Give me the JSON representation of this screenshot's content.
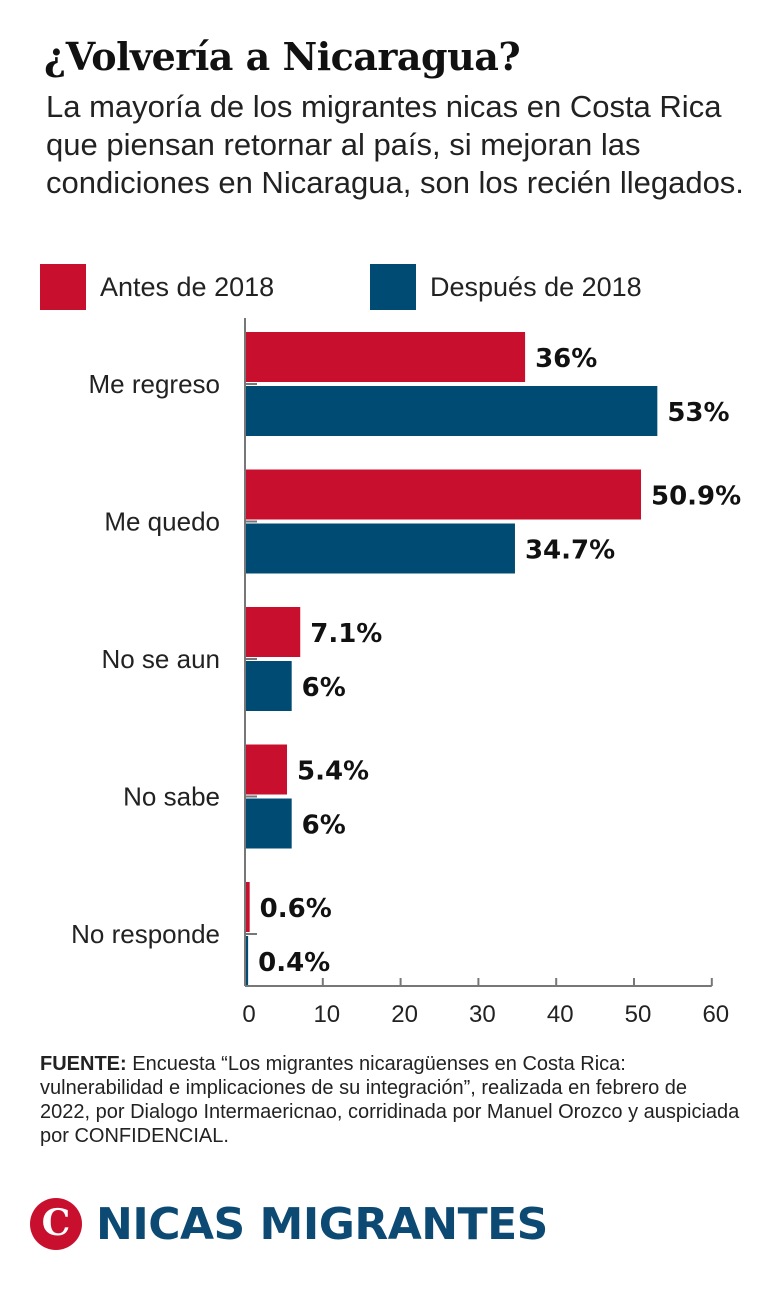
{
  "header": {
    "title": "¿Volvería a Nicaragua?",
    "subtitle": "La mayoría de los migrantes nicas en Costa Rica que piensan retornar al país, si mejoran las condiciones en Nicaragua, son los recién llegados."
  },
  "colors": {
    "antes": "#c8102e",
    "despues": "#004b73",
    "axis": "#777777",
    "brand": "#0d4a73"
  },
  "chart_data": {
    "type": "bar",
    "orientation": "horizontal",
    "title": "¿Volvería a Nicaragua?",
    "categories": [
      "Me regreso",
      "Me quedo",
      "No se aun",
      "No sabe",
      "No responde"
    ],
    "series": [
      {
        "name": "Antes de 2018",
        "values": [
          36,
          50.9,
          7.1,
          5.4,
          0.6
        ],
        "labels": [
          "36%",
          "50.9%",
          "7.1%",
          "5.4%",
          "0.6%"
        ]
      },
      {
        "name": "Después de 2018",
        "values": [
          53,
          34.7,
          6,
          6,
          0.4
        ],
        "labels": [
          "53%",
          "34.7%",
          "6%",
          "6%",
          "0.4%"
        ]
      }
    ],
    "xlim": [
      0,
      60
    ],
    "xticks": [
      "0",
      "10",
      "20",
      "30",
      "40",
      "50",
      "60"
    ],
    "legend_position": "top",
    "grid": false
  },
  "footer": {
    "source_label": "FUENTE:",
    "source_text": "Encuesta “Los migrantes nicaragüenses en Costa Rica: vulnerabilidad e implicaciones de su integración”, realizada en febrero de 2022, por Dialogo Intermaericnao, corridinada por Manuel Orozco y auspiciada por CONFIDENCIAL."
  },
  "brand": {
    "logo_letter": "C",
    "text": "NICAS MIGRANTES"
  }
}
